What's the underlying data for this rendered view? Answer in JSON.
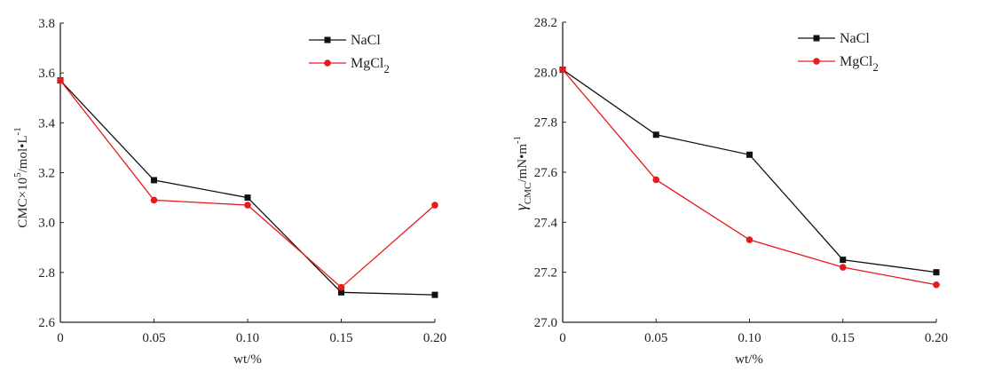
{
  "chart_data": [
    {
      "type": "line",
      "x": [
        0,
        0.05,
        0.1,
        0.15,
        0.2
      ],
      "xticks": [
        "0",
        "0.05",
        "0.10",
        "0.15",
        "0.20"
      ],
      "xlabel": "wt/%",
      "ylabel": {
        "main": "CMC×10",
        "sup": "5",
        "unit": "/mol•L",
        "unit_sup": "-1"
      },
      "ylim": [
        2.6,
        3.8
      ],
      "yticks": [
        "2.6",
        "2.8",
        "3.0",
        "3.2",
        "3.4",
        "3.6",
        "3.8"
      ],
      "grid": false,
      "legend_position": "top-right",
      "series": [
        {
          "name": "NaCl",
          "name_main": "NaCl",
          "name_sub": "",
          "color": "#111111",
          "marker": "square",
          "values": [
            3.57,
            3.17,
            3.1,
            2.72,
            2.71
          ]
        },
        {
          "name": "MgCl2",
          "name_main": "MgCl",
          "name_sub": "2",
          "color": "#e8191c",
          "marker": "circle",
          "values": [
            3.57,
            3.09,
            3.07,
            2.74,
            3.07
          ]
        }
      ]
    },
    {
      "type": "line",
      "x": [
        0,
        0.05,
        0.1,
        0.15,
        0.2
      ],
      "xticks": [
        "0",
        "0.05",
        "0.10",
        "0.15",
        "0.20"
      ],
      "xlabel": "wt/%",
      "ylabel": {
        "main": "γ",
        "sub": "CMC",
        "unit": "/mN•m",
        "unit_sup": "-1"
      },
      "ylim": [
        27.0,
        28.2
      ],
      "yticks": [
        "27.0",
        "27.2",
        "27.4",
        "27.6",
        "27.8",
        "28.0",
        "28.2"
      ],
      "grid": false,
      "legend_position": "top-right",
      "series": [
        {
          "name": "NaCl",
          "name_main": "NaCl",
          "name_sub": "",
          "color": "#111111",
          "marker": "square",
          "values": [
            28.01,
            27.75,
            27.67,
            27.25,
            27.2
          ]
        },
        {
          "name": "MgCl2",
          "name_main": "MgCl",
          "name_sub": "2",
          "color": "#e8191c",
          "marker": "circle",
          "values": [
            28.01,
            27.57,
            27.33,
            27.22,
            27.15
          ]
        }
      ]
    }
  ]
}
